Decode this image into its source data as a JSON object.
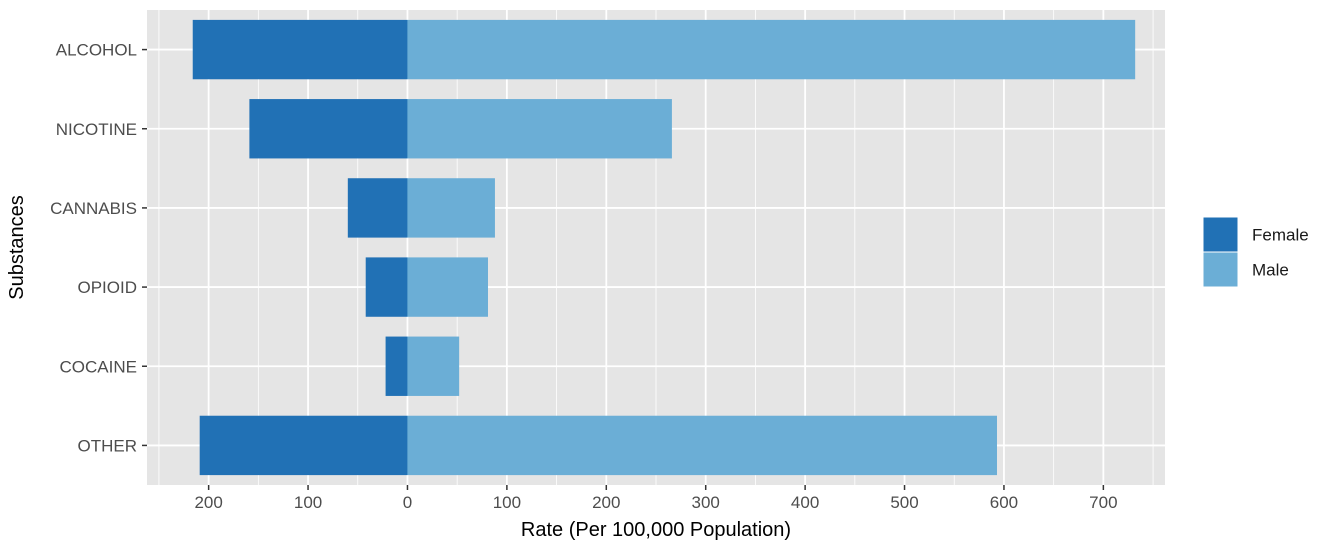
{
  "chart_data": {
    "type": "bar",
    "orientation": "horizontal",
    "layout": "diverging",
    "categories": [
      "ALCOHOL",
      "NICOTINE",
      "CANNABIS",
      "OPIOID",
      "COCAINE",
      "OTHER"
    ],
    "series": [
      {
        "name": "Female",
        "values": [
          216,
          159,
          60,
          42,
          22,
          209
        ],
        "color": "#2171b5",
        "direction": "negative"
      },
      {
        "name": "Male",
        "values": [
          732,
          266,
          88,
          81,
          52,
          593
        ],
        "color": "#6baed6",
        "direction": "positive"
      }
    ],
    "xlabel": "Rate (Per 100,000 Population)",
    "ylabel": "Substances",
    "xlim": [
      -262,
      762
    ],
    "xticks": [
      -200,
      -100,
      0,
      100,
      200,
      300,
      400,
      500,
      600,
      700
    ],
    "xtick_labels": [
      "200",
      "100",
      "0",
      "100",
      "200",
      "300",
      "400",
      "500",
      "600",
      "700"
    ],
    "grid": true,
    "legend_position": "right",
    "panel_background": "#e5e5e5",
    "grid_color": "#ffffff"
  }
}
